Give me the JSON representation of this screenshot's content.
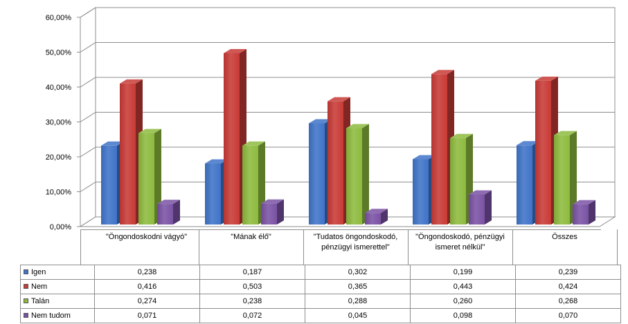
{
  "chart_data": {
    "type": "bar",
    "categories": [
      "\"Öngondoskodni vágyó\"",
      "\"Mának élő\"",
      "\"Tudatos öngondoskodó, pénzügyi ismerettel\"",
      "\"Öngondoskodó, pénzügyi ismeret nélkül\"",
      "Összes"
    ],
    "series": [
      {
        "name": "Igen",
        "values": [
          0.238,
          0.187,
          0.302,
          0.199,
          0.239
        ],
        "labels": [
          "0,238",
          "0,187",
          "0,302",
          "0,199",
          "0,239"
        ],
        "color": "#3F73C8"
      },
      {
        "name": "Nem",
        "values": [
          0.416,
          0.503,
          0.365,
          0.443,
          0.424
        ],
        "labels": [
          "0,416",
          "0,503",
          "0,365",
          "0,443",
          "0,424"
        ],
        "color": "#C83A36"
      },
      {
        "name": "Talán",
        "values": [
          0.274,
          0.238,
          0.288,
          0.26,
          0.268
        ],
        "labels": [
          "0,274",
          "0,238",
          "0,288",
          "0,260",
          "0,268"
        ],
        "color": "#8DBB3E"
      },
      {
        "name": "Nem tudom",
        "values": [
          0.071,
          0.072,
          0.045,
          0.098,
          0.07
        ],
        "labels": [
          "0,071",
          "0,072",
          "0,045",
          "0,098",
          "0,070"
        ],
        "color": "#7A52A4"
      }
    ],
    "ylim": [
      0,
      0.6
    ],
    "yticks": [
      "0,00%",
      "10,00%",
      "20,00%",
      "30,00%",
      "40,00%",
      "50,00%",
      "60,00%"
    ],
    "grid": true,
    "legend": "data-table-left"
  }
}
